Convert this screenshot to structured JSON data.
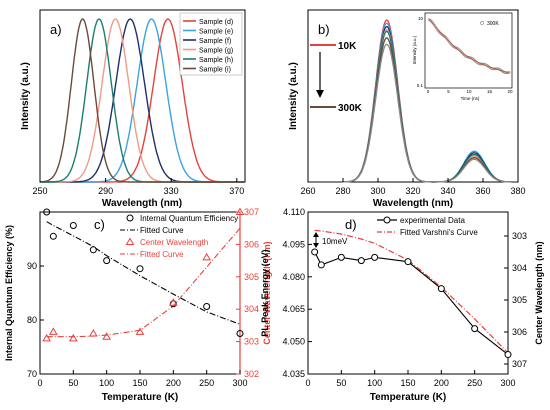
{
  "chart_data": [
    {
      "panel": "a)",
      "type": "line",
      "xlabel": "Wavelength (nm)",
      "ylabel": "Intensity (a.u.)",
      "xlim": [
        250,
        375
      ],
      "x_ticks": [
        250,
        290,
        330,
        370
      ],
      "series": [
        {
          "name": "Sample (d)",
          "color": "#e8413c",
          "peak_nm": 328,
          "width_nm": 14
        },
        {
          "name": "Sample (e)",
          "color": "#3aa3e0",
          "peak_nm": 318,
          "width_nm": 14
        },
        {
          "name": "Sample (f)",
          "color": "#1f2f6a",
          "peak_nm": 305,
          "width_nm": 14
        },
        {
          "name": "Sample (g)",
          "color": "#f29a87",
          "peak_nm": 296,
          "width_nm": 13
        },
        {
          "name": "Sample (h)",
          "color": "#1a7f6a",
          "peak_nm": 286,
          "width_nm": 12
        },
        {
          "name": "Sample (i)",
          "color": "#6b4a3a",
          "peak_nm": 276,
          "width_nm": 11
        }
      ]
    },
    {
      "panel": "b)",
      "type": "line",
      "xlabel": "Wavelength (nm)",
      "ylabel": "Intensity (a.u.)",
      "xlim": [
        260,
        380
      ],
      "x_ticks": [
        260,
        280,
        300,
        320,
        340,
        360,
        380
      ],
      "temp_top": "10K",
      "temp_bottom": "300K",
      "peak1_nm": 305,
      "peak2_nm": 355,
      "series": [
        {
          "color": "#e8413c",
          "peak1": 1.0,
          "peak2": 0.17
        },
        {
          "color": "#3aa3e0",
          "peak1": 0.98,
          "peak2": 0.19
        },
        {
          "color": "#1f2f6a",
          "peak1": 0.96,
          "peak2": 0.18
        },
        {
          "color": "#f29a87",
          "peak1": 0.94,
          "peak2": 0.16
        },
        {
          "color": "#1a7f6a",
          "peak1": 0.93,
          "peak2": 0.17
        },
        {
          "color": "#6b4a3a",
          "peak1": 0.89,
          "peak2": 0.15
        },
        {
          "color": "#8a8a8a",
          "peak1": 0.85,
          "peak2": 0.14
        }
      ],
      "inset": {
        "xlabel": "Time (ns)",
        "ylabel": "Intensity (a.u.)",
        "legend": "300K",
        "x_ticks": [
          0,
          5,
          10,
          15,
          20
        ],
        "y_tick_top": "10",
        "y_tick_bottom": "0.1"
      }
    },
    {
      "panel": "c)",
      "type": "scatter",
      "xlabel": "Temperature (K)",
      "ylabel_left": "Internal Quantum Efficiency (%)",
      "ylabel_right": "Center Wavelength (nm)",
      "xlim": [
        0,
        300
      ],
      "ylim_left": [
        70,
        100
      ],
      "ylim_right": [
        302,
        307
      ],
      "x_ticks": [
        0,
        50,
        100,
        150,
        200,
        250,
        300
      ],
      "y_ticks_left": [
        70,
        80,
        90
      ],
      "y_ticks_right": [
        302,
        303,
        304,
        305,
        306,
        307
      ],
      "temperature": [
        10,
        20,
        50,
        80,
        100,
        150,
        200,
        250,
        300
      ],
      "iqe": [
        100,
        95.5,
        97.5,
        93,
        91,
        89.5,
        83,
        82.5,
        77.5
      ],
      "iqe_fit": [
        98.2,
        97.5,
        95.6,
        93.6,
        91.9,
        88.2,
        84.8,
        81.5,
        79.2
      ],
      "center_wavelength": [
        303.1,
        303.3,
        303.1,
        303.25,
        303.15,
        303.3,
        304.2,
        305.6,
        307
      ],
      "center_fit": [
        303.15,
        303.15,
        303.15,
        303.17,
        303.2,
        303.35,
        304.1,
        305.3,
        306.5
      ],
      "legend": [
        "Internal Quantum Efficiency",
        "Fitted Curve",
        "Center Wavelength",
        "Fitted Curve"
      ]
    },
    {
      "panel": "d)",
      "type": "line",
      "xlabel": "Temperature (K)",
      "ylabel_left": "PL Peak Energy (eV)",
      "ylabel_right": "Center Wavelength (nm)",
      "xlim": [
        0,
        300
      ],
      "ylim_left": [
        4.035,
        4.11
      ],
      "x_ticks": [
        0,
        50,
        100,
        150,
        200,
        250,
        300
      ],
      "y_ticks_left": [
        "4.035",
        "4.050",
        "4.065",
        "4.080",
        "4.095",
        "4.110"
      ],
      "y_ticks_right": [
        "303",
        "304",
        "305",
        "306",
        "307"
      ],
      "temperature": [
        10,
        20,
        50,
        80,
        100,
        150,
        200,
        250,
        300
      ],
      "energy": [
        4.0915,
        4.0855,
        4.089,
        4.0875,
        4.089,
        4.087,
        4.0745,
        4.056,
        4.044
      ],
      "varshni_fit": [
        4.1015,
        4.1012,
        4.0998,
        4.0975,
        4.0955,
        4.0878,
        4.0752,
        4.0605,
        4.0447
      ],
      "annotation": "10meV",
      "legend": [
        "experimental Data",
        "Fitted Varshni's Curve"
      ]
    }
  ]
}
